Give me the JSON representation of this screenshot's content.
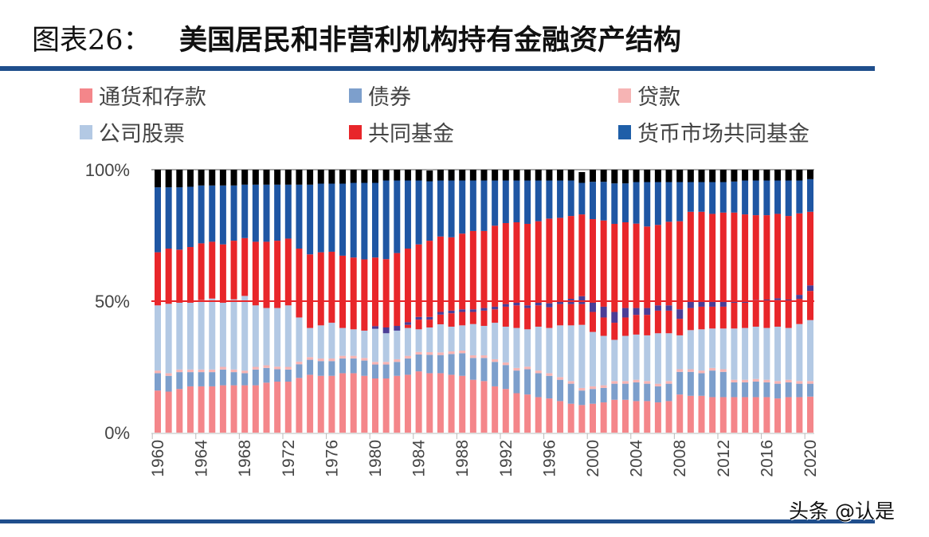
{
  "title": {
    "prefix": "图表26：",
    "text": "美国居民和非营利机构持有金融资产结构"
  },
  "watermark": "头条 @认是",
  "chart_data": {
    "type": "bar",
    "stacked": true,
    "title": "美国居民和非营利机构持有金融资产结构",
    "xlabel": "",
    "ylabel": "",
    "ylim": [
      0,
      100
    ],
    "yticks": [
      "0%",
      "50%",
      "100%"
    ],
    "xtick_labels": [
      "1960",
      "1964",
      "1968",
      "1972",
      "1976",
      "1980",
      "1984",
      "1988",
      "1992",
      "1996",
      "2000",
      "2004",
      "2008",
      "2012",
      "2016",
      "2020"
    ],
    "reference_line": {
      "y": 50,
      "color": "#e8262a"
    },
    "legend_position": "top",
    "grid": false,
    "categories": [
      1960,
      1961,
      1962,
      1963,
      1964,
      1965,
      1966,
      1967,
      1968,
      1969,
      1970,
      1971,
      1972,
      1973,
      1974,
      1975,
      1976,
      1977,
      1978,
      1979,
      1980,
      1981,
      1982,
      1983,
      1984,
      1985,
      1986,
      1987,
      1988,
      1989,
      1990,
      1991,
      1992,
      1993,
      1994,
      1995,
      1996,
      1997,
      1998,
      1999,
      2000,
      2001,
      2002,
      2003,
      2004,
      2005,
      2006,
      2007,
      2008,
      2009,
      2010,
      2011,
      2012,
      2013,
      2014,
      2015,
      2016,
      2017,
      2018,
      2019,
      2020
    ],
    "series": [
      {
        "name": "通货和存款",
        "color": "#f4868a",
        "values": [
          16.0,
          15.6,
          16.6,
          17.6,
          17.6,
          17.6,
          18.0,
          18.0,
          18.0,
          18.0,
          19.0,
          19.4,
          19.4,
          20.8,
          22.0,
          21.6,
          21.6,
          22.6,
          22.6,
          21.6,
          20.6,
          20.6,
          21.6,
          22.0,
          23.3,
          22.6,
          22.6,
          22.0,
          21.6,
          20.1,
          19.6,
          17.6,
          16.6,
          15.0,
          14.5,
          13.5,
          13.0,
          12.0,
          11.0,
          10.5,
          11.0,
          11.5,
          12.5,
          12.5,
          12.0,
          12.0,
          11.5,
          12.0,
          14.5,
          14.0,
          14.0,
          13.5,
          13.5,
          13.5,
          13.5,
          13.5,
          13.5,
          13.0,
          13.5,
          13.5,
          13.7
        ]
      },
      {
        "name": "债券",
        "color": "#7d9fcc",
        "values": [
          6.6,
          6.0,
          6.4,
          5.4,
          5.4,
          5.4,
          6.0,
          5.0,
          4.6,
          6.0,
          5.6,
          4.7,
          4.6,
          5.2,
          5.7,
          5.6,
          5.6,
          5.6,
          5.6,
          5.8,
          5.3,
          5.3,
          5.3,
          6.2,
          6.4,
          7.0,
          6.9,
          7.9,
          8.6,
          8.3,
          8.8,
          9.3,
          9.1,
          8.6,
          9.6,
          9.1,
          8.6,
          8.1,
          7.6,
          5.5,
          5.6,
          5.5,
          6.1,
          6.1,
          7.1,
          6.6,
          6.1,
          6.6,
          8.6,
          9.1,
          8.6,
          10.1,
          9.6,
          5.6,
          5.6,
          5.9,
          5.6,
          5.6,
          5.6,
          5.1,
          4.9
        ]
      },
      {
        "name": "贷款",
        "color": "#f6b4b4",
        "values": [
          1,
          1,
          1,
          1,
          1,
          1,
          1,
          1,
          1,
          1,
          1,
          1,
          1,
          1,
          1,
          1,
          1,
          1,
          1,
          1,
          1,
          1,
          1,
          1,
          1,
          1,
          1,
          1,
          1,
          1,
          1,
          1,
          1,
          1,
          1,
          1,
          1,
          1,
          1,
          1,
          1,
          1,
          1,
          1,
          1,
          1,
          1,
          1,
          1,
          1,
          1,
          1,
          1,
          1,
          1,
          1,
          1,
          1,
          1,
          1,
          1
        ]
      },
      {
        "name": "公司股票",
        "color": "#b3c9e4",
        "values": [
          24.8,
          26.4,
          25.4,
          25.4,
          26.4,
          27.0,
          24.4,
          26.7,
          28.4,
          23.4,
          21.8,
          22.3,
          23.4,
          16.8,
          11.1,
          12.6,
          13.6,
          10.6,
          10.1,
          10.4,
          12.6,
          10.9,
          10.9,
          10.6,
          8.6,
          9.4,
          10.7,
          9.4,
          9.6,
          11.9,
          11.2,
          13.9,
          13.6,
          15.2,
          14.2,
          16.7,
          17.2,
          19.7,
          21.2,
          24.0,
          20.7,
          18.8,
          15.7,
          17.2,
          17.2,
          17.4,
          19.2,
          18.2,
          12.9,
          14.9,
          15.7,
          15.0,
          15.5,
          19.5,
          19.7,
          19.9,
          19.7,
          20.7,
          19.7,
          21.7,
          23.2
        ]
      },
      {
        "name": "共同基金",
        "color": "#e8262a",
        "values": [
          0,
          0,
          0,
          0,
          0,
          0,
          0,
          0,
          0,
          0,
          0,
          0,
          0,
          0,
          0,
          0,
          0,
          0,
          0,
          0,
          0,
          0,
          0,
          1.2,
          3.7,
          3.0,
          3.7,
          5.1,
          5.1,
          4.6,
          5.8,
          5.1,
          7.6,
          8.6,
          8.1,
          8.1,
          7.9,
          8.1,
          8.1,
          7.9,
          7.6,
          7.0,
          6.5,
          7.0,
          7.5,
          7.8,
          8.6,
          8.6,
          6.3,
          8.4,
          8.6,
          8.3,
          8.3,
          9.8,
          9.6,
          9.4,
          10.1,
          10.1,
          10.1,
          9.6,
          11.1
        ]
      },
      {
        "name": "货币市场共同基金",
        "color": "#4b3d96",
        "values": [
          0,
          0,
          0,
          0,
          0,
          0,
          0,
          0,
          0,
          0,
          0,
          0,
          0,
          0,
          0,
          0,
          0,
          0,
          0,
          0,
          1.0,
          2.2,
          1.8,
          1.0,
          1.0,
          1.0,
          1.0,
          1.0,
          1.0,
          1.0,
          1.0,
          1.0,
          1.0,
          1.0,
          1.0,
          1.0,
          1.5,
          1.0,
          2.0,
          3.0,
          3.5,
          4.1,
          4.1,
          3.6,
          2.6,
          2.6,
          2.0,
          2.0,
          3.6,
          2.7,
          2.2,
          2.0,
          2.0,
          0.7,
          0.7,
          0.7,
          0.7,
          0.7,
          0.7,
          1.5,
          2.1
        ]
      },
      {
        "name": "",
        "color": "#e8262a",
        "values": [
          20.2,
          21.0,
          20.2,
          21.2,
          21.6,
          21.6,
          22.2,
          22.3,
          22.0,
          24.2,
          25.2,
          25.6,
          25.4,
          26.2,
          28.0,
          27.8,
          27.0,
          27.5,
          27.3,
          27.1,
          26.1,
          26.0,
          27.7,
          28.0,
          27.6,
          29.0,
          28.7,
          27.9,
          28.8,
          29.8,
          29.3,
          30.8,
          30.8,
          30.6,
          31.0,
          31.0,
          32.2,
          31.8,
          31.5,
          31.1,
          31.8,
          32.8,
          33.5,
          32.6,
          32.1,
          31.0,
          30.6,
          31.8,
          33.5,
          33.9,
          33.9,
          33.3,
          33.8,
          33.6,
          32.9,
          32.3,
          32.1,
          32.1,
          31.8,
          31.0,
          28.0
        ]
      },
      {
        "name": "",
        "color": "#1f56a3",
        "values": [
          24.7,
          23.3,
          23.7,
          22.9,
          22.0,
          21.4,
          22.4,
          21.0,
          20.3,
          21.7,
          21.7,
          21.3,
          20.5,
          24.3,
          26.5,
          26.1,
          25.9,
          27.4,
          28.4,
          29.1,
          28.4,
          29.9,
          27.6,
          25.9,
          24.3,
          22.6,
          21.3,
          21.6,
          20.2,
          19.2,
          19.2,
          17.2,
          16.2,
          15.9,
          16.5,
          15.5,
          14.5,
          14.2,
          13.5,
          12.0,
          14.2,
          14.7,
          15.4,
          14.8,
          15.8,
          16.9,
          16.3,
          15.1,
          14.9,
          11.3,
          11.3,
          12.1,
          11.6,
          11.8,
          12.9,
          13.2,
          13.2,
          12.7,
          13.5,
          12.5,
          12.4
        ]
      },
      {
        "name": "",
        "color": "#000000",
        "values": [
          6.7,
          6.7,
          6.7,
          6.5,
          6.0,
          6.0,
          6.0,
          6.0,
          5.7,
          5.7,
          5.7,
          5.7,
          5.7,
          5.7,
          5.7,
          5.3,
          5.3,
          5.3,
          5.0,
          5.0,
          5.0,
          4.1,
          4.1,
          4.1,
          4.1,
          4.1,
          4.1,
          4.1,
          4.1,
          4.1,
          4.1,
          4.1,
          4.1,
          4.1,
          4.1,
          4.1,
          4.1,
          4.1,
          4.1,
          4.1,
          4.6,
          4.6,
          5.2,
          5.2,
          4.7,
          4.7,
          4.7,
          4.7,
          4.7,
          4.7,
          4.7,
          4.7,
          4.7,
          4.5,
          4.1,
          4.1,
          4.1,
          4.1,
          4.1,
          4.1,
          3.6
        ]
      }
    ]
  }
}
